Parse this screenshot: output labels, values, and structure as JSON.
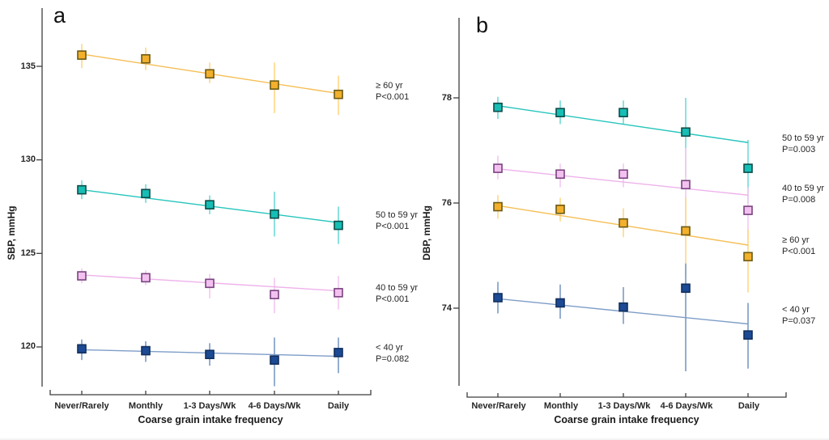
{
  "palette": {
    "orange": {
      "fill": "#F3B02C",
      "edge": "#6B5A14",
      "line": "#F5BE55",
      "bar": "#FFC95C"
    },
    "teal": {
      "fill": "#16BEB5",
      "edge": "#0C4B47",
      "line": "#25C5BC",
      "bar": "#3FCFC7"
    },
    "pink": {
      "fill": "#F3C1F0",
      "edge": "#79437F",
      "line": "#EEB2EB",
      "bar": "#F0B5ED"
    },
    "blue": {
      "fill": "#1C4A94",
      "edge": "#122E5C",
      "line": "#7E9DC8",
      "bar": "#4E79B2"
    }
  },
  "axis_color": "#3F3F3F",
  "chart_data": [
    {
      "type": "line",
      "panel_label": "a",
      "ylabel": "SBP, mmHg",
      "xlabel": "Coarse grain intake frequency",
      "categories": [
        "Never/Rarely",
        "Monthly",
        "1-3 Days/Wk",
        "4-6 Days/Wk",
        "Daily"
      ],
      "yticks": [
        135,
        130,
        125,
        120
      ],
      "ylim": [
        117.8,
        138.1
      ],
      "grid": false,
      "legend_position": "right-annotations",
      "series": [
        {
          "name": "≥ 60 yr",
          "pvalue": "P<0.001",
          "color": "orange",
          "values": [
            135.6,
            135.4,
            134.6,
            134.0,
            133.5
          ],
          "err_lo": [
            134.9,
            134.8,
            134.1,
            132.5,
            132.4
          ],
          "err_hi": [
            136.2,
            136.0,
            135.2,
            135.2,
            134.5
          ],
          "trend": [
            135.65,
            133.55
          ]
        },
        {
          "name": "50 to 59 yr",
          "pvalue": "P<0.001",
          "color": "teal",
          "values": [
            128.4,
            128.2,
            127.6,
            127.1,
            126.5
          ],
          "err_lo": [
            127.9,
            127.7,
            127.1,
            125.9,
            125.5
          ],
          "err_hi": [
            128.9,
            128.7,
            128.1,
            128.3,
            127.5
          ],
          "trend": [
            128.4,
            126.65
          ]
        },
        {
          "name": "40 to 59 yr",
          "pvalue": "P<0.001",
          "color": "pink",
          "values": [
            123.8,
            123.7,
            123.4,
            122.8,
            122.9
          ],
          "err_lo": [
            123.4,
            123.3,
            122.6,
            121.8,
            122.0
          ],
          "err_hi": [
            124.2,
            124.1,
            123.9,
            123.7,
            123.8
          ],
          "trend": [
            123.85,
            123.0
          ]
        },
        {
          "name": "< 40 yr",
          "pvalue": "P=0.082",
          "color": "blue",
          "values": [
            119.9,
            119.8,
            119.6,
            119.3,
            119.7
          ],
          "err_lo": [
            119.3,
            119.2,
            119.0,
            117.9,
            118.6
          ],
          "err_hi": [
            120.4,
            120.3,
            120.2,
            120.5,
            120.5
          ],
          "trend": [
            119.85,
            119.5
          ]
        }
      ]
    },
    {
      "type": "line",
      "panel_label": "b",
      "ylabel": "DBP, mmHg",
      "xlabel": "Coarse grain intake frequency",
      "categories": [
        "Never/Rarely",
        "Monthly",
        "1-3 Days/Wk",
        "4-6 Days/Wk",
        "Daily"
      ],
      "yticks": [
        78,
        76,
        74
      ],
      "ylim": [
        72.5,
        79.5
      ],
      "grid": false,
      "legend_position": "right-annotations",
      "series": [
        {
          "name": "50 to 59 yr",
          "pvalue": "P=0.003",
          "color": "teal",
          "values": [
            77.82,
            77.72,
            77.72,
            77.35,
            76.66
          ],
          "err_lo": [
            77.6,
            77.5,
            77.5,
            76.5,
            76.0
          ],
          "err_hi": [
            78.02,
            77.95,
            77.95,
            78.0,
            77.2
          ],
          "trend": [
            77.85,
            77.15
          ]
        },
        {
          "name": "40 to 59 yr",
          "pvalue": "P=0.008",
          "color": "pink",
          "values": [
            76.66,
            76.55,
            76.55,
            76.35,
            75.86
          ],
          "err_lo": [
            76.45,
            76.3,
            76.3,
            75.6,
            75.3
          ],
          "err_hi": [
            76.9,
            76.75,
            76.75,
            77.05,
            76.3
          ],
          "trend": [
            76.65,
            76.15
          ]
        },
        {
          "name": "≥ 60 yr",
          "pvalue": "P<0.001",
          "color": "orange",
          "values": [
            75.93,
            75.88,
            75.62,
            75.47,
            74.98
          ],
          "err_lo": [
            75.7,
            75.65,
            75.35,
            74.6,
            74.3
          ],
          "err_hi": [
            76.15,
            76.1,
            75.9,
            76.1,
            75.5
          ],
          "trend": [
            75.95,
            75.2
          ]
        },
        {
          "name": "< 40 yr",
          "pvalue": "P=0.037",
          "color": "blue",
          "values": [
            74.2,
            74.1,
            74.02,
            74.38,
            73.49
          ],
          "err_lo": [
            73.9,
            73.8,
            73.7,
            72.8,
            72.85
          ],
          "err_hi": [
            74.5,
            74.45,
            74.4,
            74.85,
            74.1
          ],
          "trend": [
            74.18,
            73.7
          ]
        }
      ]
    }
  ]
}
